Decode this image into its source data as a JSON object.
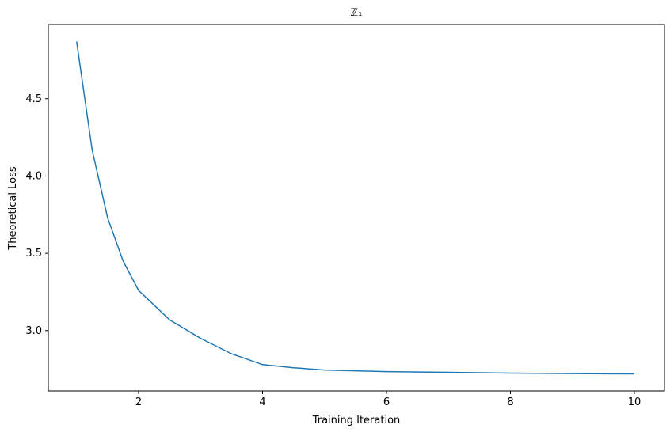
{
  "chart_data": {
    "type": "line",
    "title": "ℤ₁",
    "x_label": "Training Iteration",
    "y_label": "Theoretical Loss",
    "x": [
      1,
      1.25,
      1.5,
      1.75,
      2,
      2.5,
      3,
      3.5,
      4,
      4.5,
      5,
      6,
      7,
      8,
      9,
      10
    ],
    "series": [
      {
        "name": "Theoretical Loss",
        "color": "#1f77b4",
        "values": [
          4.87,
          4.17,
          3.73,
          3.45,
          3.26,
          3.07,
          2.95,
          2.85,
          2.78,
          2.76,
          2.745,
          2.735,
          2.73,
          2.725,
          2.722,
          2.72
        ]
      }
    ],
    "xlim": [
      0.543,
      10.486
    ],
    "xticks": [
      2,
      4,
      6,
      8,
      10
    ],
    "ylim": [
      2.61,
      4.98
    ],
    "yticks": [
      3.0,
      3.5,
      4.0,
      4.5
    ]
  }
}
